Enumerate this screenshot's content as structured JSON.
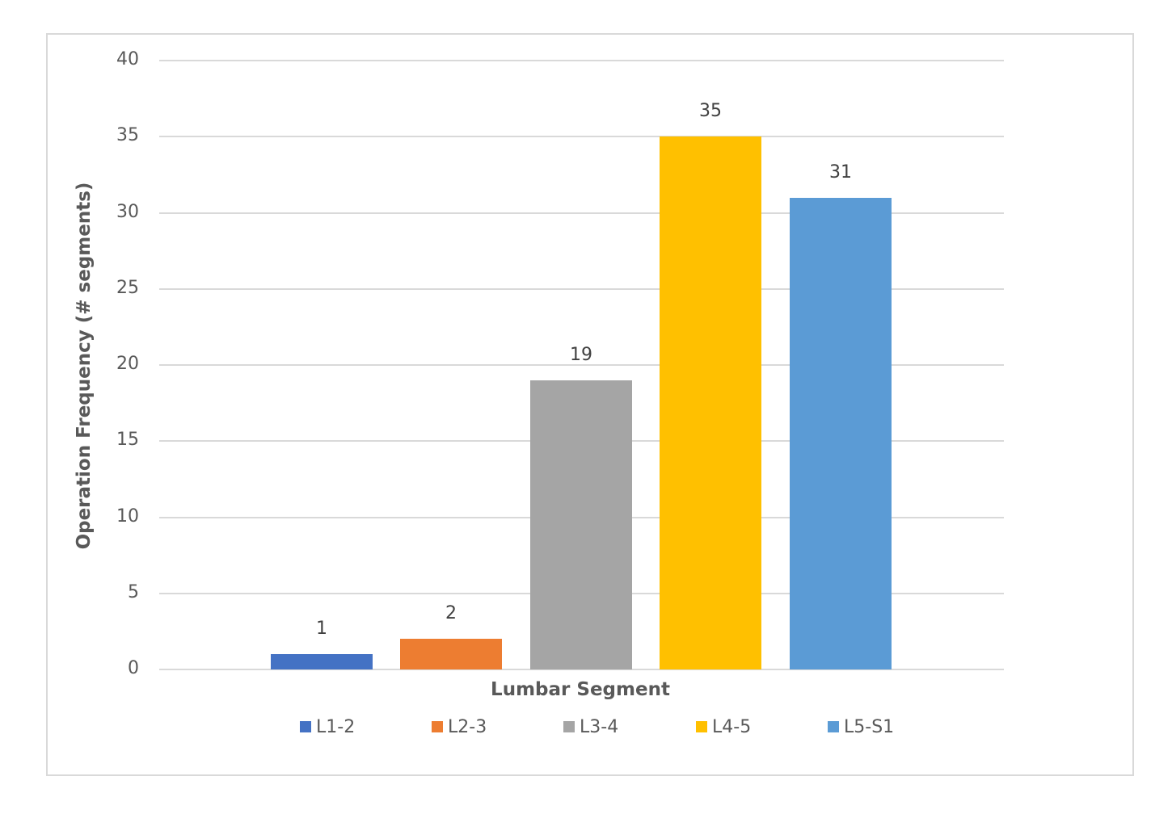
{
  "chart_data": {
    "type": "bar",
    "title": "",
    "xlabel": "Lumbar Segment",
    "ylabel": "Operation Frequency (# segments)",
    "categories": [
      "L1-2",
      "L2-3",
      "L3-4",
      "L4-5",
      "L5-S1"
    ],
    "values": [
      1,
      2,
      19,
      35,
      31
    ],
    "colors": [
      "#4472c4",
      "#ed7d31",
      "#a5a5a5",
      "#ffc000",
      "#5b9bd5"
    ],
    "ylim": [
      0,
      40
    ],
    "yticks": [
      "0",
      "5",
      "10",
      "15",
      "20",
      "25",
      "30",
      "35",
      "40"
    ],
    "data_labels": [
      "1",
      "2",
      "19",
      "35",
      "31"
    ],
    "grid": true,
    "legend_position": "bottom",
    "legend": [
      "L1-2",
      "L2-3",
      "L3-4",
      "L4-5",
      "L5-S1"
    ]
  }
}
